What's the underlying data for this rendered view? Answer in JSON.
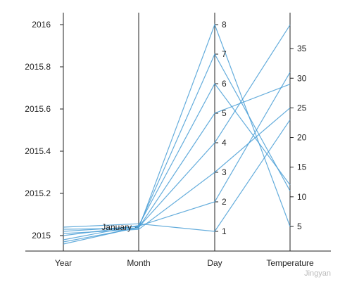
{
  "chart_data": {
    "type": "parallel-coordinates",
    "line_color": "#4a9fd6",
    "axes": [
      {
        "key": "year",
        "label": "Year",
        "range": [
          2015,
          2016
        ],
        "ticks": [
          "2015",
          "2015.2",
          "2015.4",
          "2015.6",
          "2015.8",
          "2016"
        ],
        "tick_side": "left"
      },
      {
        "key": "month",
        "label": "Month",
        "categories": [
          "January"
        ],
        "tick_side": "left"
      },
      {
        "key": "day",
        "label": "Day",
        "range": [
          1,
          8
        ],
        "ticks": [
          "1",
          "2",
          "3",
          "4",
          "5",
          "6",
          "7",
          "8"
        ],
        "tick_side": "right"
      },
      {
        "key": "temperature",
        "label": "Temperature",
        "range": [
          5,
          40
        ],
        "ticks": [
          "5",
          "10",
          "15",
          "20",
          "25",
          "30",
          "35"
        ],
        "tick_side": "right"
      }
    ],
    "records": [
      {
        "year": 2015.04,
        "month": 0.06,
        "day": 1,
        "temperature": 23
      },
      {
        "year": 2015.0,
        "month": 0.02,
        "day": 2,
        "temperature": 31
      },
      {
        "year": 2015.01,
        "month": -0.04,
        "day": 3,
        "temperature": 25
      },
      {
        "year": 2014.96,
        "month": 0.0,
        "day": 4,
        "temperature": 39
      },
      {
        "year": 2014.97,
        "month": -0.01,
        "day": 5,
        "temperature": 29
      },
      {
        "year": 2014.98,
        "month": 0.03,
        "day": 6,
        "temperature": 12
      },
      {
        "year": 2015.02,
        "month": 0.01,
        "day": 7,
        "temperature": 11
      },
      {
        "year": 2015.03,
        "month": -0.02,
        "day": 8,
        "temperature": 5
      }
    ]
  },
  "watermark": "Jingyan"
}
